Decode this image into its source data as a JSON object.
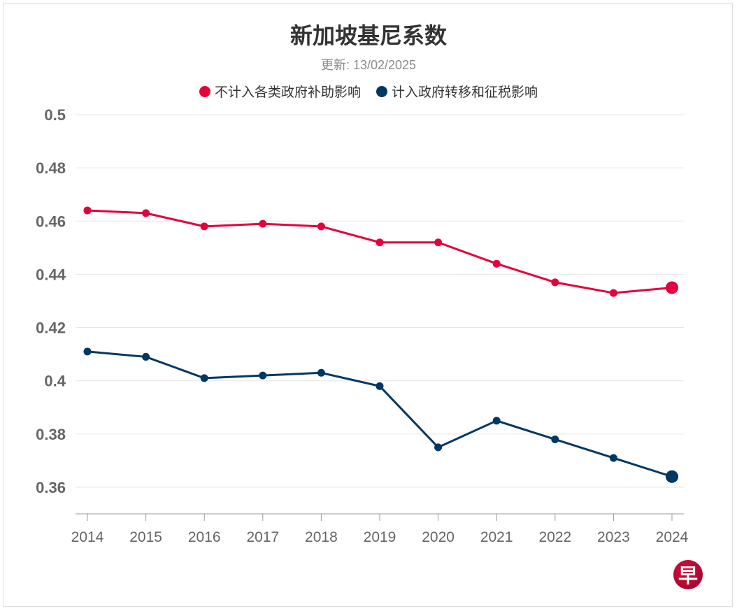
{
  "chart_data": {
    "type": "line",
    "title": "新加坡基尼系数",
    "subtitle": "更新: 13/02/2025",
    "x": [
      "2014",
      "2015",
      "2016",
      "2017",
      "2018",
      "2019",
      "2020",
      "2021",
      "2022",
      "2023",
      "2024"
    ],
    "yticks": [
      "0.36",
      "0.38",
      "0.4",
      "0.42",
      "0.44",
      "0.46",
      "0.48",
      "0.5"
    ],
    "ylim": [
      0.35,
      0.5
    ],
    "grid": true,
    "legend_placement": "top",
    "series": [
      {
        "name": "不计入各类政府补助影响",
        "color": "#e4003b",
        "values": [
          0.464,
          0.463,
          0.458,
          0.459,
          0.458,
          0.452,
          0.452,
          0.444,
          0.437,
          0.433,
          0.435
        ]
      },
      {
        "name": "计入政府转移和征税影响",
        "color": "#003764",
        "values": [
          0.411,
          0.409,
          0.401,
          0.402,
          0.403,
          0.398,
          0.375,
          0.385,
          0.378,
          0.371,
          0.364
        ]
      }
    ]
  },
  "logo": {
    "text": "早"
  }
}
